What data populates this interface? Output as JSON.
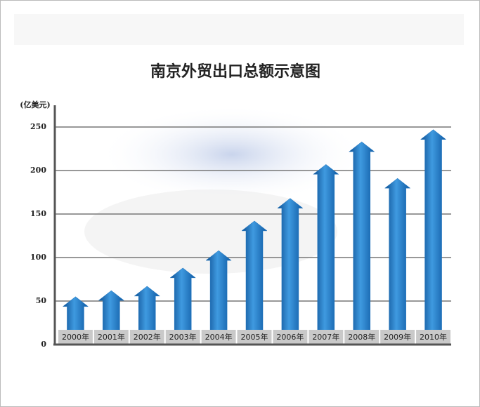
{
  "chart_data": {
    "type": "bar",
    "title": "南京外贸出口总额示意图",
    "y_label": "(亿美元)",
    "categories": [
      "2000年",
      "2001年",
      "2002年",
      "2003年",
      "2004年",
      "2005年",
      "2006年",
      "2007年",
      "2008年",
      "2009年",
      "2010年"
    ],
    "values": [
      55,
      62,
      67,
      88,
      108,
      142,
      168,
      207,
      233,
      191,
      247
    ],
    "color": "#1f73bd",
    "ylim": [
      0,
      275
    ],
    "yticks": [
      0,
      50,
      100,
      150,
      200,
      250
    ],
    "grid": true
  }
}
